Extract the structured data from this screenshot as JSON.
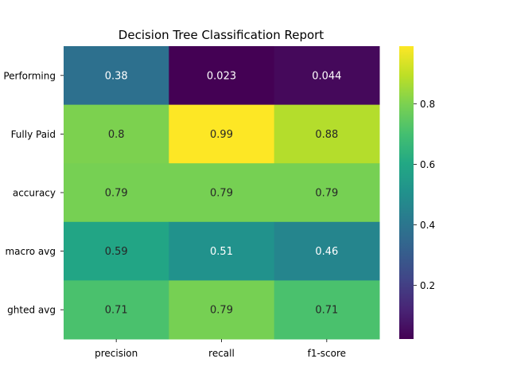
{
  "chart_data": {
    "type": "heatmap",
    "title": "Decision Tree Classification Report",
    "xlabel": "",
    "ylabel": "",
    "columns": [
      "precision",
      "recall",
      "f1-score"
    ],
    "rows": [
      "Performing",
      "Fully Paid",
      "accuracy",
      "macro avg",
      "ghted avg"
    ],
    "values": [
      [
        0.38,
        0.023,
        0.044
      ],
      [
        0.8,
        0.99,
        0.88
      ],
      [
        0.79,
        0.79,
        0.79
      ],
      [
        0.59,
        0.51,
        0.46
      ],
      [
        0.71,
        0.79,
        0.71
      ]
    ],
    "value_labels": [
      [
        "0.38",
        "0.023",
        "0.044"
      ],
      [
        "0.8",
        "0.99",
        "0.88"
      ],
      [
        "0.79",
        "0.79",
        "0.79"
      ],
      [
        "0.59",
        "0.51",
        "0.46"
      ],
      [
        "0.71",
        "0.79",
        "0.71"
      ]
    ],
    "colormap": "viridis",
    "color_range": [
      0.023,
      0.99
    ],
    "colorbar_ticks": [
      0.2,
      0.4,
      0.6,
      0.8
    ],
    "colorbar_tick_labels": [
      "0.2",
      "0.4",
      "0.6",
      "0.8"
    ]
  }
}
